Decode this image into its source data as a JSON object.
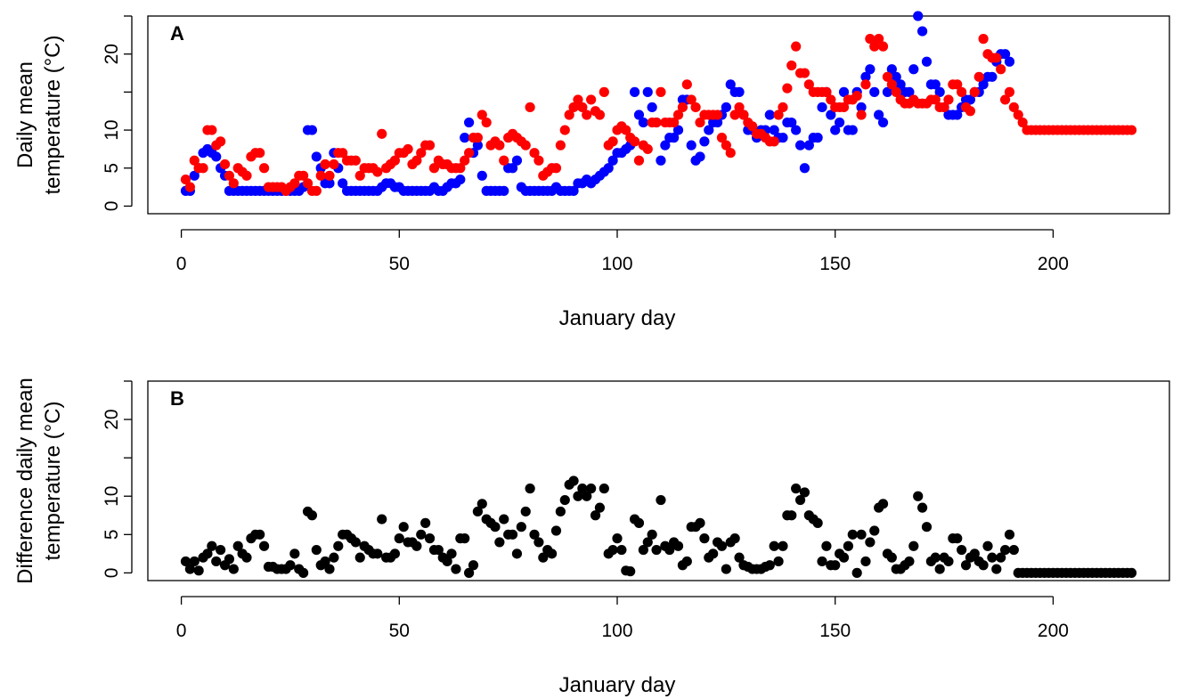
{
  "charts": [
    {
      "chart_data": {
        "type": "scatter",
        "panel_label": "A",
        "ylabel": [
          "Daily mean",
          "temperature (°C)"
        ],
        "xlabel": "January day",
        "xlim": [
          -7.68,
          226.68
        ],
        "ylim": [
          -1,
          25
        ],
        "xticks": [
          0,
          50,
          100,
          150,
          200
        ],
        "yticks": [
          0,
          5,
          10,
          {
            "value": 15,
            "label": null
          },
          20,
          {
            "value": 25,
            "label": null
          }
        ],
        "x": [
          1,
          2,
          3,
          4,
          5,
          6,
          7,
          8,
          9,
          10,
          11,
          12,
          13,
          14,
          15,
          16,
          17,
          18,
          19,
          20,
          21,
          22,
          23,
          24,
          25,
          26,
          27,
          28,
          29,
          30,
          31,
          32,
          33,
          34,
          35,
          36,
          37,
          38,
          39,
          40,
          41,
          42,
          43,
          44,
          45,
          46,
          47,
          48,
          49,
          50,
          51,
          52,
          53,
          54,
          55,
          56,
          57,
          58,
          59,
          60,
          61,
          62,
          63,
          64,
          65,
          66,
          67,
          68,
          69,
          70,
          71,
          72,
          73,
          74,
          75,
          76,
          77,
          78,
          79,
          80,
          81,
          82,
          83,
          84,
          85,
          86,
          87,
          88,
          89,
          90,
          91,
          92,
          93,
          94,
          95,
          96,
          97,
          98,
          99,
          100,
          101,
          102,
          103,
          104,
          105,
          106,
          107,
          108,
          109,
          110,
          111,
          112,
          113,
          114,
          115,
          116,
          117,
          118,
          119,
          120,
          121,
          122,
          123,
          124,
          125,
          126,
          127,
          128,
          129,
          130,
          131,
          132,
          133,
          134,
          135,
          136,
          137,
          138,
          139,
          140,
          141,
          142,
          143,
          144,
          145,
          146,
          147,
          148,
          149,
          150,
          151,
          152,
          153,
          154,
          155,
          156,
          157,
          158,
          159,
          160,
          161,
          162,
          163,
          164,
          165,
          166,
          167,
          168,
          169,
          170,
          171,
          172,
          173,
          174,
          175,
          176,
          177,
          178,
          179,
          180,
          181,
          182,
          183,
          184,
          185,
          186,
          187,
          188,
          189,
          190,
          191,
          192,
          193,
          194,
          195,
          196,
          197,
          198,
          199,
          200,
          201,
          202,
          203,
          204,
          205,
          206,
          207,
          208,
          209,
          210,
          211,
          212,
          213,
          214,
          215,
          216,
          217,
          218
        ],
        "series": [
          {
            "color": "#0000ff",
            "values": [
              2,
              2,
              4,
              5,
              7,
              7.5,
              7,
              6.5,
              5,
              4,
              2,
              2,
              2,
              2,
              2,
              2,
              2,
              2,
              2,
              2,
              2,
              2,
              2,
              2,
              2,
              2,
              2,
              2.5,
              10,
              10,
              6.5,
              5,
              3,
              3,
              7,
              5,
              3,
              2,
              2,
              2,
              2,
              2,
              2,
              2,
              2,
              2.5,
              3,
              3,
              2.5,
              2.5,
              2,
              2,
              2,
              2,
              2,
              2,
              2,
              2.5,
              2,
              2,
              2.5,
              3,
              3,
              3.5,
              9,
              11,
              7,
              8,
              4,
              2,
              2,
              2,
              2,
              2,
              5,
              5,
              6,
              2.5,
              2,
              2,
              2,
              2,
              2,
              2,
              2,
              2.5,
              2,
              2,
              2,
              2,
              3,
              3,
              3.5,
              3,
              3.5,
              4,
              4.5,
              5,
              6,
              7,
              7,
              7.5,
              8,
              15,
              12,
              11,
              15,
              13,
              11,
              6,
              8,
              9,
              9,
              10,
              14,
              14,
              8,
              6,
              6.5,
              8.5,
              10,
              11,
              11,
              12,
              13,
              16,
              15,
              15,
              12,
              10,
              10,
              9,
              10,
              10,
              12,
              10,
              9,
              9,
              11,
              11,
              10,
              8,
              5,
              8,
              9,
              9,
              13,
              15,
              12,
              10,
              11,
              15,
              10,
              10,
              15,
              13,
              17,
              18,
              15,
              12,
              11,
              15,
              18,
              17,
              16,
              15,
              15,
              18,
              25,
              23,
              19,
              16,
              16,
              15,
              13,
              12,
              12,
              12,
              13,
              14,
              14,
              15,
              15,
              16,
              17,
              17,
              19,
              20,
              20,
              19,
              null,
              null,
              null,
              null,
              null,
              null,
              null,
              null,
              null,
              null,
              null,
              null,
              null,
              null,
              null,
              null,
              null,
              null,
              null,
              null,
              null,
              null,
              null,
              null,
              null,
              null,
              null,
              null
            ]
          },
          {
            "color": "#ff0000",
            "values": [
              3.5,
              2.5,
              6,
              5,
              5,
              10,
              10,
              8,
              8.5,
              5.5,
              4,
              3,
              5,
              4.5,
              4,
              6.5,
              7,
              7,
              5,
              2.5,
              2.5,
              2.5,
              2.5,
              2,
              2.5,
              3,
              4,
              4,
              3,
              2,
              2,
              4,
              5.5,
              4,
              5.5,
              7,
              7,
              6,
              6,
              6,
              4,
              5,
              5,
              5,
              4.5,
              9.5,
              5,
              5.5,
              6,
              7,
              7,
              7.5,
              5.5,
              6,
              7,
              8,
              8,
              5,
              6,
              5.5,
              5.5,
              5,
              5,
              5,
              6,
              7,
              9,
              9,
              12,
              11,
              8,
              8.5,
              8,
              6,
              9,
              9.5,
              9,
              8.5,
              8,
              13,
              7,
              6,
              4,
              4.5,
              5,
              5,
              8,
              10,
              12,
              13,
              14,
              13,
              12,
              14,
              12.5,
              12,
              15,
              8,
              8.5,
              10,
              10.5,
              10,
              9,
              8.5,
              6,
              8,
              7.5,
              11,
              11,
              15,
              11,
              11,
              11,
              12,
              13,
              16,
              14,
              13,
              11,
              12,
              12,
              12,
              12,
              9,
              8,
              7,
              12,
              13,
              12,
              11,
              10.5,
              9.5,
              9.5,
              9,
              8.5,
              8.5,
              12,
              13,
              15.5,
              18.5,
              21,
              17.5,
              17.5,
              16,
              15,
              15,
              15,
              15,
              14,
              13,
              13,
              13,
              14,
              14,
              14.5,
              12,
              16,
              22,
              21,
              22,
              21,
              17,
              16,
              15,
              14,
              13.5,
              13.5,
              14,
              13.5,
              13.5,
              13.5,
              14,
              14,
              13,
              13,
              14,
              16,
              16,
              15,
              13,
              12.5,
              15,
              17,
              22,
              20,
              19.5,
              19.5,
              18,
              14,
              15,
              13,
              12,
              11,
              10,
              10,
              10,
              10,
              10,
              10,
              10,
              10,
              10,
              10,
              10,
              10,
              10,
              10,
              10,
              10,
              10,
              10,
              10,
              10,
              10,
              10,
              10,
              10,
              10
            ]
          }
        ]
      }
    },
    {
      "chart_data": {
        "type": "scatter",
        "panel_label": "B",
        "ylabel": [
          "Difference daily mean",
          "temperature (°C)"
        ],
        "xlabel": "January day",
        "xlim": [
          -7.68,
          226.68
        ],
        "ylim": [
          -1,
          25
        ],
        "xticks": [
          0,
          50,
          100,
          150,
          200
        ],
        "yticks": [
          0,
          5,
          10,
          {
            "value": 15,
            "label": null
          },
          20,
          {
            "value": 25,
            "label": null
          }
        ],
        "x": [
          1,
          2,
          3,
          4,
          5,
          6,
          7,
          8,
          9,
          10,
          11,
          12,
          13,
          14,
          15,
          16,
          17,
          18,
          19,
          20,
          21,
          22,
          23,
          24,
          25,
          26,
          27,
          28,
          29,
          30,
          31,
          32,
          33,
          34,
          35,
          36,
          37,
          38,
          39,
          40,
          41,
          42,
          43,
          44,
          45,
          46,
          47,
          48,
          49,
          50,
          51,
          52,
          53,
          54,
          55,
          56,
          57,
          58,
          59,
          60,
          61,
          62,
          63,
          64,
          65,
          66,
          67,
          68,
          69,
          70,
          71,
          72,
          73,
          74,
          75,
          76,
          77,
          78,
          79,
          80,
          81,
          82,
          83,
          84,
          85,
          86,
          87,
          88,
          89,
          90,
          91,
          92,
          93,
          94,
          95,
          96,
          97,
          98,
          99,
          100,
          101,
          102,
          103,
          104,
          105,
          106,
          107,
          108,
          109,
          110,
          111,
          112,
          113,
          114,
          115,
          116,
          117,
          118,
          119,
          120,
          121,
          122,
          123,
          124,
          125,
          126,
          127,
          128,
          129,
          130,
          131,
          132,
          133,
          134,
          135,
          136,
          137,
          138,
          139,
          140,
          141,
          142,
          143,
          144,
          145,
          146,
          147,
          148,
          149,
          150,
          151,
          152,
          153,
          154,
          155,
          156,
          157,
          158,
          159,
          160,
          161,
          162,
          163,
          164,
          165,
          166,
          167,
          168,
          169,
          170,
          171,
          172,
          173,
          174,
          175,
          176,
          177,
          178,
          179,
          180,
          181,
          182,
          183,
          184,
          185,
          186,
          187,
          188,
          189,
          190,
          191,
          192,
          193,
          194,
          195,
          196,
          197,
          198,
          199,
          200,
          201,
          202,
          203,
          204,
          205,
          206,
          207,
          208,
          209,
          210,
          211,
          212,
          213,
          214,
          215,
          216,
          217,
          218
        ],
        "color": "#000000",
        "values": [
          1.5,
          0.5,
          1.5,
          0.3,
          2,
          2.5,
          3.5,
          1.5,
          3,
          1,
          1.8,
          0.5,
          3.5,
          2.5,
          2,
          4.5,
          5,
          5,
          3.5,
          0.8,
          0.8,
          0.5,
          0.5,
          0.5,
          1,
          2.5,
          0.5,
          0,
          8,
          7.5,
          3,
          1,
          1.5,
          0.5,
          2,
          3.5,
          5,
          5,
          4.5,
          4,
          2,
          3.5,
          3,
          2.5,
          2.5,
          7,
          2,
          2,
          2.5,
          4.5,
          6,
          4,
          4,
          3.5,
          5,
          6.5,
          4.5,
          3,
          3,
          2,
          1.5,
          2.5,
          0.5,
          4.5,
          4.5,
          0,
          1,
          8,
          9,
          7,
          6.5,
          6,
          4,
          7,
          5,
          5,
          2.5,
          6,
          8,
          11,
          5,
          4,
          2,
          3,
          2.5,
          5.5,
          8,
          9.5,
          11.5,
          12,
          10,
          11,
          10,
          11,
          7.5,
          8.5,
          11,
          2.5,
          3,
          4.5,
          3,
          0.3,
          0.2,
          7,
          6.5,
          3,
          4,
          5,
          3,
          9.5,
          3.5,
          3,
          4,
          3.5,
          1,
          1.5,
          6,
          6,
          6.5,
          4.5,
          2,
          2.5,
          4,
          3.5,
          0.5,
          4,
          4.5,
          2,
          1,
          0.8,
          0.5,
          0.5,
          0.5,
          0.8,
          1,
          3.5,
          1.5,
          3.5,
          7.5,
          7.5,
          11,
          9.5,
          10.5,
          7.5,
          7,
          6.5,
          1.5,
          3.5,
          1,
          1,
          2.5,
          2,
          3.5,
          5,
          0,
          5,
          1.5,
          4,
          5.5,
          8.5,
          9,
          2.5,
          2,
          0.5,
          0.5,
          1,
          1.5,
          3.5,
          10,
          8.5,
          6,
          1.5,
          2,
          0.5,
          2,
          1.5,
          4.5,
          4.5,
          3,
          1,
          2,
          2.5,
          1.5,
          1,
          3.5,
          2,
          0.5,
          2,
          3,
          5,
          3,
          0,
          0,
          0,
          0,
          0,
          0,
          0,
          0,
          0,
          0,
          0,
          0,
          0,
          0,
          0,
          0,
          0,
          0,
          0,
          0,
          0,
          0,
          0,
          0,
          0,
          0,
          0
        ]
      }
    }
  ]
}
